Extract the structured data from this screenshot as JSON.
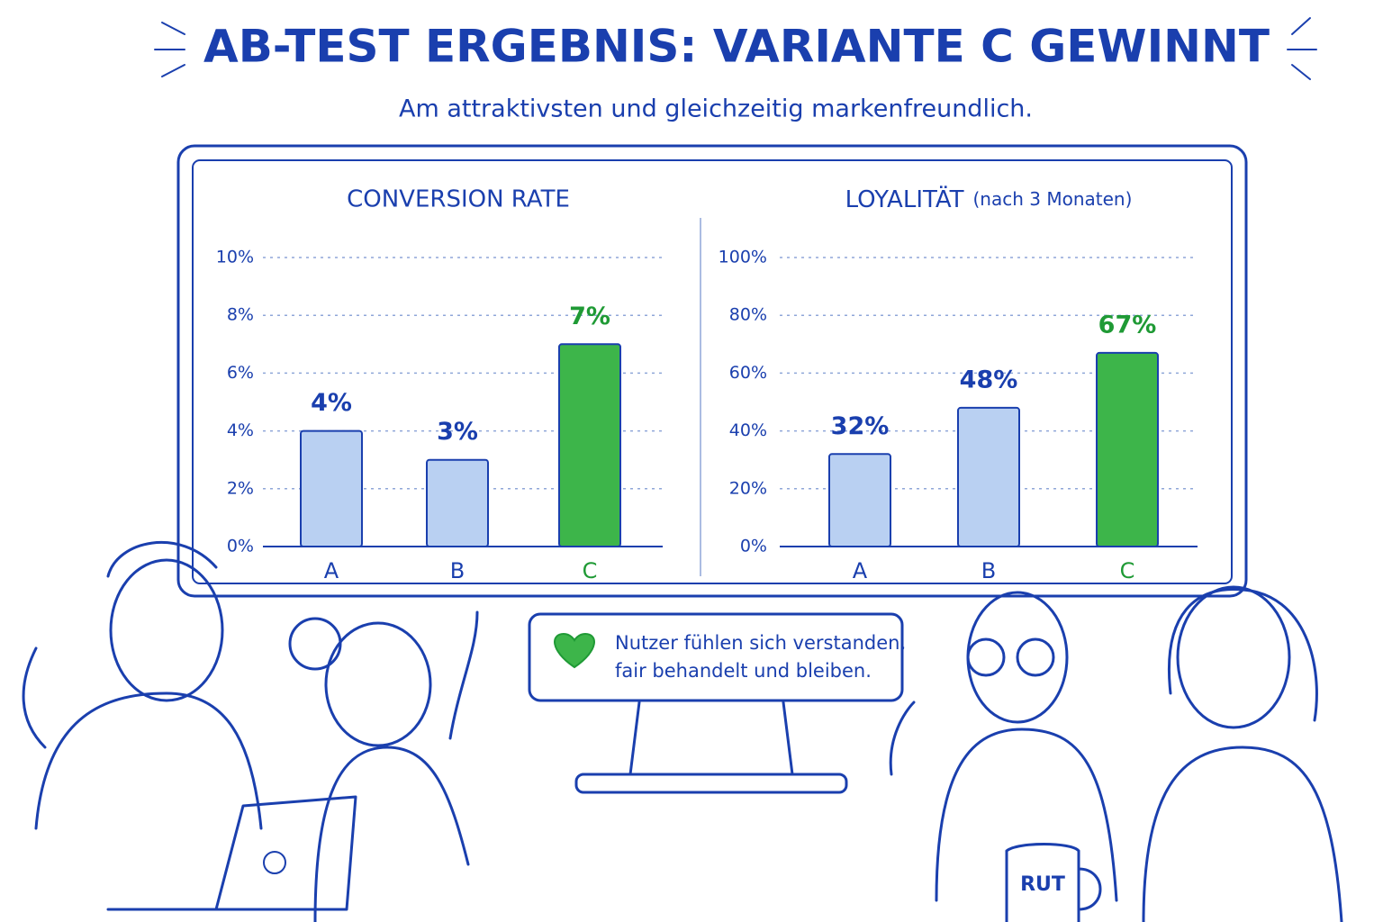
{
  "header": {
    "title": "AB-TEST ERGEBNIS: VARIANTE C GEWINNT",
    "subtitle": "Am attraktivsten und gleichzeitig markenfreundlich."
  },
  "chart_data": [
    {
      "type": "bar",
      "title": "CONVERSION RATE",
      "categories": [
        "A",
        "B",
        "C"
      ],
      "values": [
        4,
        3,
        7
      ],
      "value_labels": [
        "4%",
        "3%",
        "7%"
      ],
      "colors": [
        "#b9d0f2",
        "#b9d0f2",
        "#3db54a"
      ],
      "label_colors": [
        "#1a3fae",
        "#1a3fae",
        "#1f9a35"
      ],
      "ylim": [
        0,
        10
      ],
      "yticks": [
        {
          "value": 0,
          "label": "0%"
        },
        {
          "value": 2,
          "label": "2%"
        },
        {
          "value": 4,
          "label": "4%"
        },
        {
          "value": 6,
          "label": "6%"
        },
        {
          "value": 8,
          "label": "8%"
        },
        {
          "value": 10,
          "label": "10%"
        }
      ],
      "grid": true
    },
    {
      "type": "bar",
      "title": "LOYALITÄT",
      "subtitle": "(nach 3 Monaten)",
      "categories": [
        "A",
        "B",
        "C"
      ],
      "values": [
        32,
        48,
        67
      ],
      "value_labels": [
        "32%",
        "48%",
        "67%"
      ],
      "colors": [
        "#b9d0f2",
        "#b9d0f2",
        "#3db54a"
      ],
      "label_colors": [
        "#1a3fae",
        "#1a3fae",
        "#1f9a35"
      ],
      "ylim": [
        0,
        100
      ],
      "yticks": [
        {
          "value": 0,
          "label": "0%"
        },
        {
          "value": 20,
          "label": "20%"
        },
        {
          "value": 40,
          "label": "40%"
        },
        {
          "value": 60,
          "label": "60%"
        },
        {
          "value": 80,
          "label": "80%"
        },
        {
          "value": 100,
          "label": "100%"
        }
      ],
      "grid": true
    }
  ],
  "callout": {
    "lines": [
      "Nutzer fühlen sich verstanden,",
      "fair behandelt und bleiben."
    ]
  },
  "mug": {
    "text": "RUT"
  }
}
